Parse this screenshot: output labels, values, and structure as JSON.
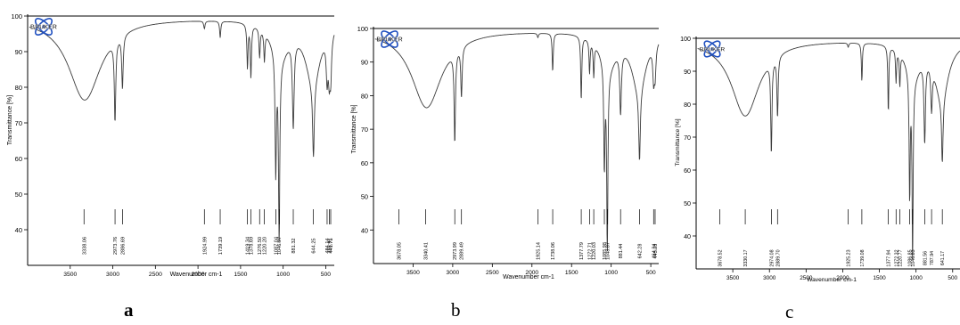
{
  "colors": {
    "trace": "#3c3c3c",
    "logo_blue": "#1f4fbf",
    "axis": "#000000"
  },
  "logo": {
    "text": "BRUKER",
    "icon": "bruker-atom-logo-icon"
  },
  "captions": [
    "a",
    "b",
    "c"
  ],
  "chart_data": [
    {
      "type": "line",
      "title": "",
      "xlabel": "Wavenumber cm-1",
      "ylabel": "Transmittance [%]",
      "xlim": [
        4000,
        400
      ],
      "ylim": [
        30,
        100
      ],
      "x_reversed": true,
      "grid": false,
      "xticks": [
        3500,
        3000,
        2500,
        2000,
        1500,
        1000,
        500
      ],
      "yticks": [
        40,
        50,
        60,
        70,
        80,
        90,
        100
      ],
      "peaks": [
        {
          "x": 3338.06,
          "y": 76,
          "label": "3338.06"
        },
        {
          "x": 2973.76,
          "y": 73,
          "label": "2973.76"
        },
        {
          "x": 2886.69,
          "y": 82,
          "label": "2886.69"
        },
        {
          "x": 1924.99,
          "y": 97,
          "label": "1924.99"
        },
        {
          "x": 1739.19,
          "y": 94,
          "label": "1739.19"
        },
        {
          "x": 1419.34,
          "y": 85,
          "label": "1419.34"
        },
        {
          "x": 1378.69,
          "y": 82,
          "label": "1378.69"
        },
        {
          "x": 1276.5,
          "y": 90,
          "label": "1276.50"
        },
        {
          "x": 1220.2,
          "y": 90,
          "label": "1220.20"
        },
        {
          "x": 1087.04,
          "y": 60,
          "label": "1087.04"
        },
        {
          "x": 1046.97,
          "y": 40,
          "label": "1046.97"
        },
        {
          "x": 881.32,
          "y": 71,
          "label": "881.32"
        },
        {
          "x": 644.25,
          "y": 75,
          "label": "644.25"
        },
        {
          "x": 484.14,
          "y": 86,
          "label": "484.14"
        },
        {
          "x": 458.91,
          "y": 87,
          "label": "458.91"
        },
        {
          "x": 441.71,
          "y": 86,
          "label": "441.71"
        }
      ]
    },
    {
      "type": "line",
      "title": "",
      "xlabel": "Wavenumber cm-1",
      "ylabel": "Transmittance [%]",
      "xlim": [
        4000,
        400
      ],
      "ylim": [
        30,
        100
      ],
      "x_reversed": true,
      "grid": false,
      "xticks": [
        3500,
        3000,
        2500,
        2000,
        1500,
        1000,
        500
      ],
      "yticks": [
        40,
        50,
        60,
        70,
        80,
        90,
        100
      ],
      "peaks": [
        {
          "x": 3678.05,
          "y": 99,
          "label": "3678.05"
        },
        {
          "x": 3340.41,
          "y": 77,
          "label": "3340.41"
        },
        {
          "x": 2973.99,
          "y": 68,
          "label": "2973.99"
        },
        {
          "x": 2889.49,
          "y": 82,
          "label": "2889.49"
        },
        {
          "x": 1925.14,
          "y": 98,
          "label": "1925.14"
        },
        {
          "x": 1738.06,
          "y": 86,
          "label": "1738.06"
        },
        {
          "x": 1377.79,
          "y": 77,
          "label": "1377.79"
        },
        {
          "x": 1272.71,
          "y": 88,
          "label": "1272.71"
        },
        {
          "x": 1220.03,
          "y": 88,
          "label": "1220.03"
        },
        {
          "x": 1085.98,
          "y": 64,
          "label": "1085.98"
        },
        {
          "x": 1048.87,
          "y": 37,
          "label": "1048.87"
        },
        {
          "x": 881.44,
          "y": 78,
          "label": "881.44"
        },
        {
          "x": 642.28,
          "y": 75,
          "label": "642.28"
        },
        {
          "x": 464.34,
          "y": 88,
          "label": "464.34"
        },
        {
          "x": 445.28,
          "y": 89,
          "label": "445.28"
        }
      ]
    },
    {
      "type": "line",
      "title": "",
      "xlabel": "Wavenumber cm-1",
      "ylabel": "Transmittance [%]",
      "xlim": [
        4000,
        400
      ],
      "ylim": [
        30,
        100
      ],
      "x_reversed": true,
      "grid": false,
      "xticks": [
        3500,
        3000,
        2500,
        2000,
        1500,
        1000,
        500
      ],
      "yticks": [
        40,
        50,
        60,
        70,
        80,
        90,
        100
      ],
      "peaks": [
        {
          "x": 3678.52,
          "y": 99,
          "label": "3678.52"
        },
        {
          "x": 3330.17,
          "y": 76,
          "label": "3330.17"
        },
        {
          "x": 2974.08,
          "y": 67,
          "label": "2974.08"
        },
        {
          "x": 2889.7,
          "y": 78,
          "label": "2889.70"
        },
        {
          "x": 1925.23,
          "y": 98,
          "label": "1925.23"
        },
        {
          "x": 1739.08,
          "y": 86,
          "label": "1739.08"
        },
        {
          "x": 1377.94,
          "y": 76,
          "label": "1377.94"
        },
        {
          "x": 1272.32,
          "y": 88,
          "label": "1272.32"
        },
        {
          "x": 1220.77,
          "y": 88,
          "label": "1220.77"
        },
        {
          "x": 1086.85,
          "y": 56,
          "label": "1086.85"
        },
        {
          "x": 1046.83,
          "y": 36,
          "label": "1046.83"
        },
        {
          "x": 881.56,
          "y": 71,
          "label": "881.56"
        },
        {
          "x": 787.94,
          "y": 84,
          "label": "787.94"
        },
        {
          "x": 641.17,
          "y": 77,
          "label": "641.17"
        }
      ]
    }
  ]
}
